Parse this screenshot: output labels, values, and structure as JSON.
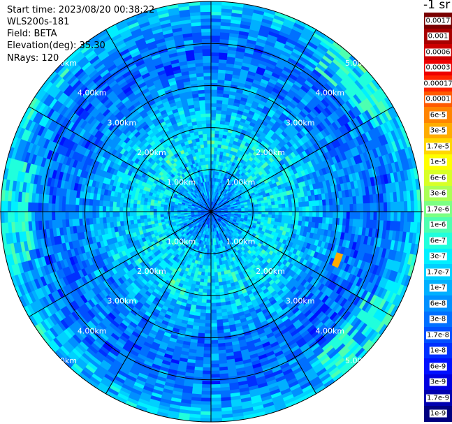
{
  "header": {
    "start_time": "Start time: 2023/08/20 00:38:22",
    "instrument": "WLS200s-181",
    "field": "Field: BETA",
    "elevation": "Elevation(deg): 35.30",
    "nrays": "NRays: 120"
  },
  "colorbar": {
    "title": "-1 sr",
    "levels": [
      {
        "label": "0.0017",
        "color": "#7a0000"
      },
      {
        "label": "0.001",
        "color": "#a80000"
      },
      {
        "label": "0.0006",
        "color": "#cc0000"
      },
      {
        "label": "0.0003",
        "color": "#ee0000"
      },
      {
        "label": "0.00017",
        "color": "#ff2400"
      },
      {
        "label": "0.0001",
        "color": "#ff5a00"
      },
      {
        "label": "6e-5",
        "color": "#ff8400"
      },
      {
        "label": "3e-5",
        "color": "#ffac00"
      },
      {
        "label": "1.7e-5",
        "color": "#ffd700"
      },
      {
        "label": "1e-5",
        "color": "#ffff00"
      },
      {
        "label": "6e-6",
        "color": "#d8ff26"
      },
      {
        "label": "3e-6",
        "color": "#aaff55"
      },
      {
        "label": "1.7e-6",
        "color": "#7cff83"
      },
      {
        "label": "1e-6",
        "color": "#4effb0"
      },
      {
        "label": "6e-7",
        "color": "#20ffdc"
      },
      {
        "label": "3e-7",
        "color": "#00f0ff"
      },
      {
        "label": "1.7e-7",
        "color": "#00d0ff"
      },
      {
        "label": "1e-7",
        "color": "#00b0ff"
      },
      {
        "label": "6e-8",
        "color": "#0090ff"
      },
      {
        "label": "3e-8",
        "color": "#0070ff"
      },
      {
        "label": "1.7e-8",
        "color": "#0050ff"
      },
      {
        "label": "1e-8",
        "color": "#0030ff"
      },
      {
        "label": "6e-9",
        "color": "#0010ff"
      },
      {
        "label": "3e-9",
        "color": "#0000e0"
      },
      {
        "label": "1.7e-9",
        "color": "#0000b0"
      },
      {
        "label": "1e-9",
        "color": "#000080"
      }
    ]
  },
  "chart_data": {
    "type": "heatmap",
    "projection": "polar (PPI scan)",
    "field": "BETA",
    "units": "-1 sr",
    "scale": "log",
    "nrays": 120,
    "elevation_deg": 35.3,
    "max_range_km": 5.0,
    "range_rings_km": [
      1,
      2,
      3,
      4,
      5
    ],
    "ring_labels": [
      "1.00km",
      "2.00km",
      "3.00km",
      "4.00km",
      "5.00km"
    ],
    "spokes_deg": [
      0,
      30,
      60,
      90,
      120,
      150,
      180,
      210,
      240,
      270,
      300,
      330
    ],
    "radial_profile": [
      {
        "range_km": 0.0,
        "value": 2e-08
      },
      {
        "range_km": 0.5,
        "value": 6e-08
      },
      {
        "range_km": 1.0,
        "value": 1.5e-07
      },
      {
        "range_km": 1.5,
        "value": 2.5e-07
      },
      {
        "range_km": 2.0,
        "value": 2e-07
      },
      {
        "range_km": 2.5,
        "value": 1e-07
      },
      {
        "range_km": 3.0,
        "value": 5e-08
      },
      {
        "range_km": 3.5,
        "value": 3e-08
      },
      {
        "range_km": 4.0,
        "value": 3e-08
      },
      {
        "range_km": 4.5,
        "value": 6e-08
      },
      {
        "range_km": 5.0,
        "value": 2.5e-07
      }
    ],
    "features": [
      {
        "description": "high return speck",
        "range_km": 3.25,
        "azimuth_deg": 111,
        "value": 3e-05
      },
      {
        "description": "elevated band",
        "range_km": 4.6,
        "azimuth_deg": 130,
        "value": 6e-07
      },
      {
        "description": "elevated band",
        "range_km": 4.6,
        "azimuth_deg": 50,
        "value": 6e-07
      },
      {
        "description": "elevated band",
        "range_km": 4.7,
        "azimuth_deg": 270,
        "value": 6e-07
      }
    ]
  }
}
